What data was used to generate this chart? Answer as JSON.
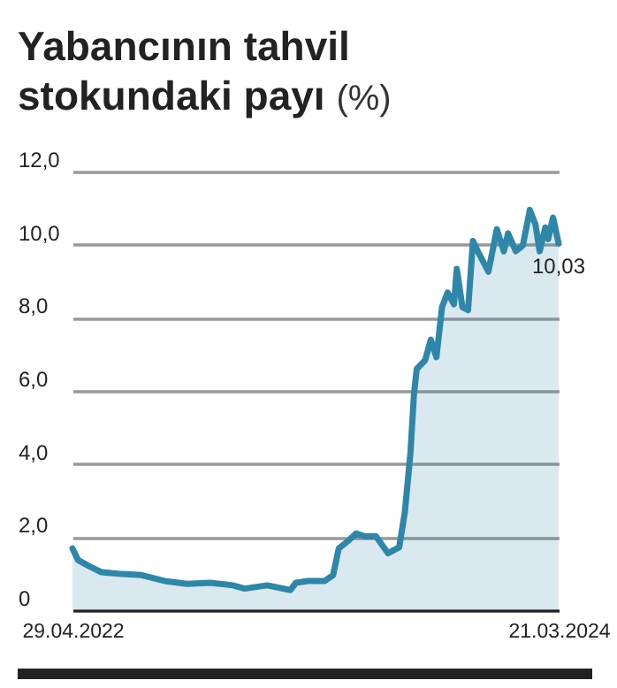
{
  "chart_data": {
    "type": "area",
    "title": "Yabancının tahvil stokundaki payı",
    "ylabel": "(%)",
    "x": [
      "2022-04-29",
      "2022-05-07",
      "2022-05-23",
      "2022-06-09",
      "2022-07-03",
      "2022-08-05",
      "2022-09-07",
      "2022-10-09",
      "2022-11-11",
      "2022-12-13",
      "2022-12-30",
      "2023-01-31",
      "2023-03-05",
      "2023-03-13",
      "2023-03-30",
      "2023-04-23",
      "2023-05-05",
      "2023-05-13",
      "2023-05-26",
      "2023-06-07",
      "2023-06-19",
      "2023-07-05",
      "2023-07-22",
      "2023-08-07",
      "2023-08-15",
      "2023-08-23",
      "2023-08-28",
      "2023-09-01",
      "2023-09-13",
      "2023-09-21",
      "2023-09-29",
      "2023-10-07",
      "2023-10-15",
      "2023-10-24",
      "2023-10-28",
      "2023-11-05",
      "2023-11-13",
      "2023-11-20",
      "2023-11-29",
      "2023-12-12",
      "2023-12-24",
      "2024-01-03",
      "2024-01-09",
      "2024-01-20",
      "2024-01-30",
      "2024-02-09",
      "2024-02-17",
      "2024-02-23",
      "2024-03-02",
      "2024-03-06",
      "2024-03-13",
      "2024-03-21"
    ],
    "series": [
      {
        "color": "#2e87a8",
        "values": [
          1.69,
          1.37,
          1.2,
          1.04,
          1.0,
          0.96,
          0.8,
          0.72,
          0.75,
          0.68,
          0.59,
          0.68,
          0.55,
          0.75,
          0.8,
          0.8,
          0.96,
          1.69,
          1.89,
          2.1,
          2.02,
          2.02,
          1.56,
          1.72,
          2.67,
          4.29,
          5.9,
          6.6,
          6.84,
          7.4,
          6.92,
          8.29,
          8.69,
          8.37,
          9.34,
          8.29,
          8.21,
          10.1,
          9.74,
          9.26,
          10.42,
          9.82,
          10.31,
          9.82,
          9.98,
          10.95,
          10.55,
          9.82,
          10.47,
          10.15,
          10.74,
          10.03
        ]
      }
    ],
    "xlim": [
      "2022-04-29",
      "2024-03-21"
    ],
    "xticks": [
      {
        "value": "2022-04-29",
        "label": "29.04.2022"
      },
      {
        "value": "2024-03-21",
        "label": "21.03.2024"
      }
    ],
    "ylim": [
      0,
      12
    ],
    "yticks": [
      {
        "value": 0,
        "label": "0"
      },
      {
        "value": 2,
        "label": "2,0"
      },
      {
        "value": 4,
        "label": "4,0"
      },
      {
        "value": 6,
        "label": "6,0"
      },
      {
        "value": 8,
        "label": "8,0"
      },
      {
        "value": 10,
        "label": "10,0"
      },
      {
        "value": 12,
        "label": "12,0"
      }
    ],
    "annotations": [
      {
        "text": "10,03",
        "x": "2024-03-21",
        "y": 10.03
      }
    ],
    "grid": "y"
  }
}
